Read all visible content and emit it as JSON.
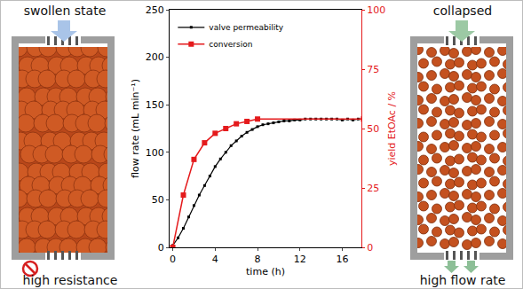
{
  "chart_data": {
    "type": "line",
    "x_label": "time (h)",
    "y_label": "flow rate (mL min⁻¹)",
    "y2_label": "yield EtOAc / %",
    "xlim": [
      -0.3,
      17.8
    ],
    "xticks": [
      0,
      4,
      8,
      12,
      16
    ],
    "ylim": [
      0,
      250
    ],
    "yticks": [
      0,
      50,
      100,
      150,
      200,
      250
    ],
    "y2lim": [
      0,
      100
    ],
    "y2ticks": [
      0,
      25,
      50,
      75,
      100
    ],
    "legend": "top left",
    "series": [
      {
        "name": "valve permeability",
        "color": "#000000",
        "marker": "square",
        "line_style": "solid",
        "axis": "y",
        "x": [
          0,
          0.5,
          1,
          1.5,
          2,
          2.5,
          3,
          3.5,
          4,
          4.5,
          5,
          5.5,
          6,
          6.5,
          7,
          7.5,
          8,
          8.5,
          9,
          9.5,
          10,
          10.5,
          11,
          11.5,
          12,
          12.5,
          13,
          13.5,
          14,
          14.5,
          15,
          15.5,
          16,
          16.5,
          17,
          17.5,
          18
        ],
        "values": [
          2,
          10,
          20,
          32,
          44,
          55,
          65,
          75,
          85,
          93,
          100,
          107,
          112,
          117,
          121,
          124,
          127,
          129,
          130,
          131,
          132,
          133,
          133,
          134,
          134,
          135,
          135,
          135,
          135,
          135,
          135,
          135,
          134,
          135,
          134,
          135,
          135
        ]
      },
      {
        "name": "conversion",
        "color": "#e41a1c",
        "marker": "square",
        "line_style": "solid",
        "axis": "y2",
        "x": [
          0,
          1,
          2,
          3,
          4,
          5,
          6,
          7,
          8,
          18
        ],
        "values": [
          0,
          22,
          37,
          44,
          48,
          50,
          52,
          53,
          54,
          54
        ]
      }
    ]
  },
  "diagram": {
    "left": {
      "title": "swollen state",
      "caption": "high resistance"
    },
    "right": {
      "title": "collapsed",
      "caption": "high flow rate"
    }
  }
}
